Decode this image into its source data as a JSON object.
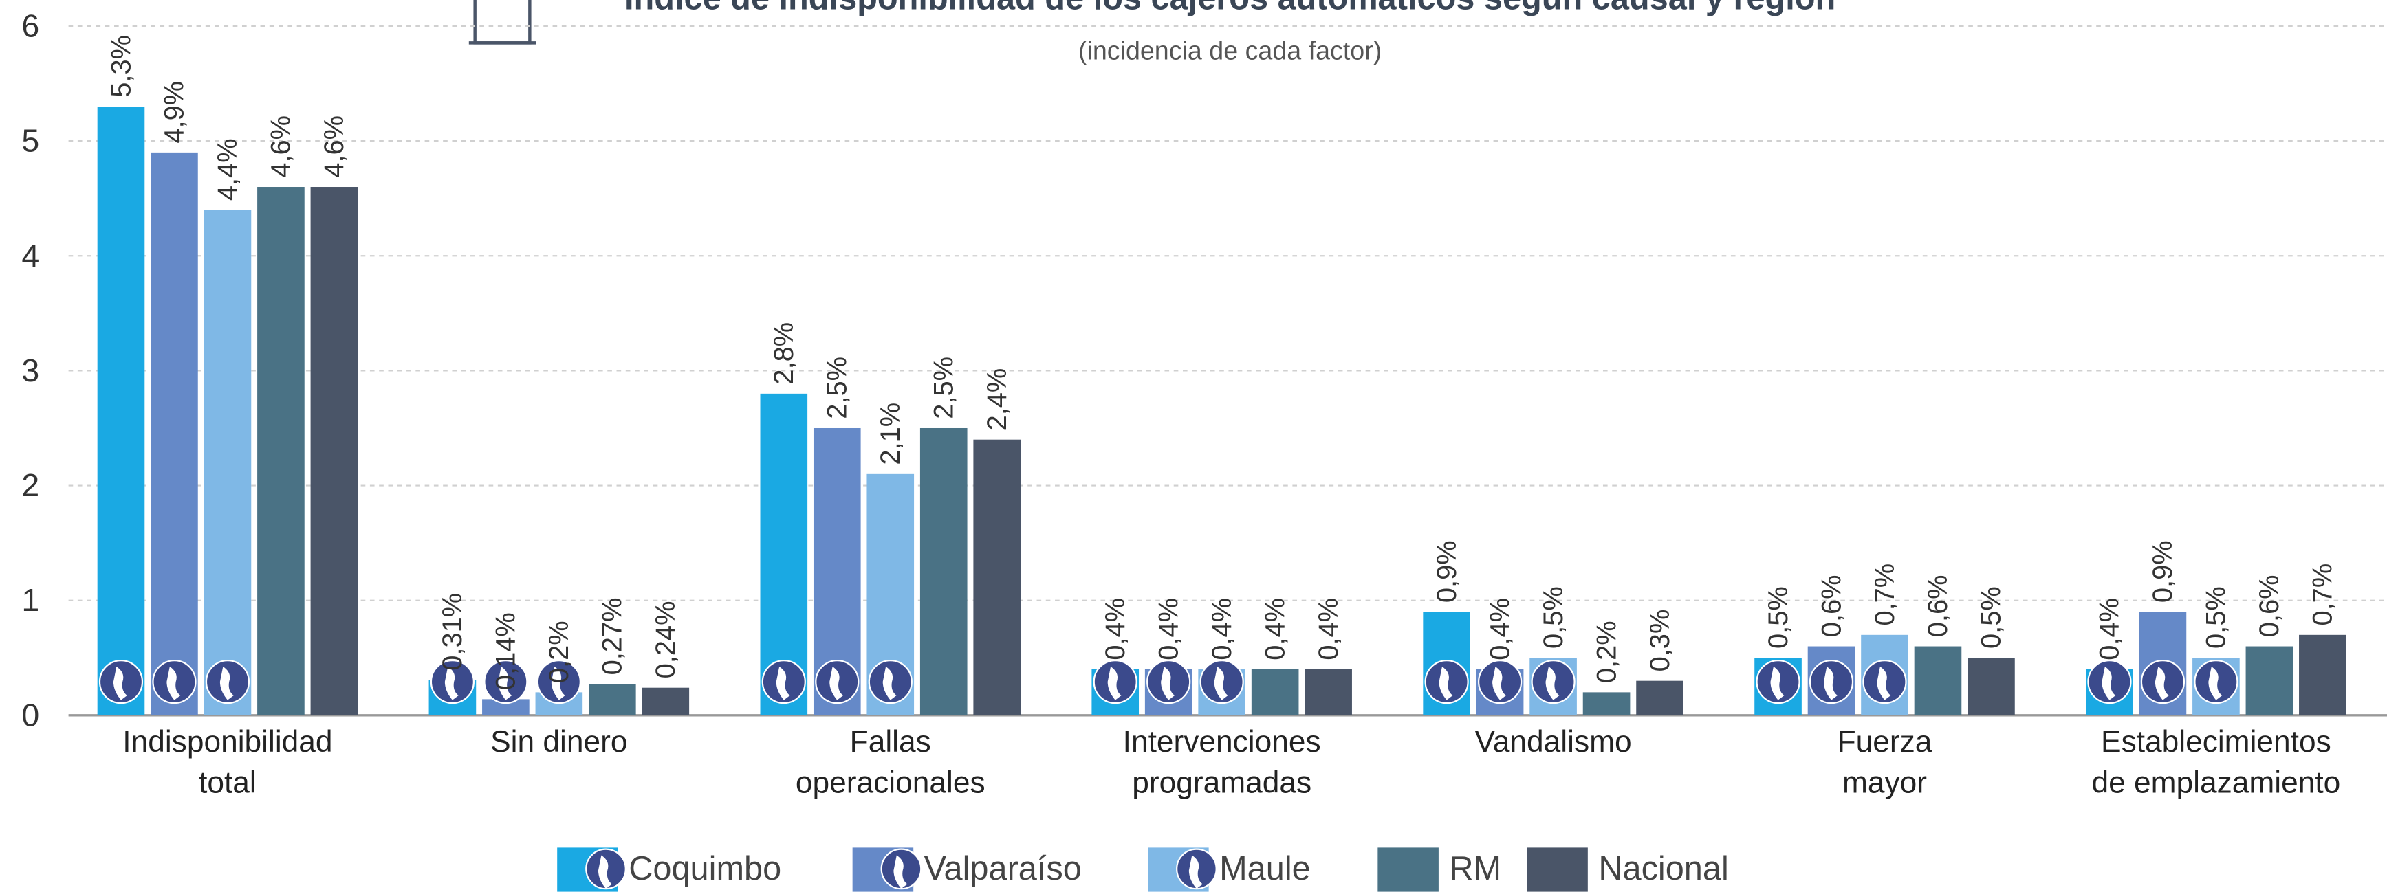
{
  "chart_data": {
    "type": "bar",
    "title": "Índice de indisponibilidad de los cajeros automáticos según causal y región",
    "subtitle": "(incidencia de cada factor)",
    "categories": [
      "Indisponibilidad\ntotal",
      "Sin dinero",
      "Fallas\noperacionales",
      "Intervenciones\nprogramadas",
      "Vandalismo",
      "Fuerza\nmayor",
      "Establecimientos\nde emplazamiento"
    ],
    "series": [
      {
        "name": "Coquimbo",
        "color": "#1aa9e3",
        "values": [
          5.3,
          0.31,
          2.8,
          0.4,
          0.9,
          0.5,
          0.4
        ],
        "value_labels": [
          "5,3%",
          "0,31%",
          "2,8%",
          "0,4%",
          "0,9%",
          "0,5%",
          "0,4%"
        ]
      },
      {
        "name": "Valparaíso",
        "color": "#6589c8",
        "values": [
          4.9,
          0.14,
          2.5,
          0.4,
          0.4,
          0.6,
          0.9
        ],
        "value_labels": [
          "4,9%",
          "0,14%",
          "2,5%",
          "0,4%",
          "0,4%",
          "0,6%",
          "0,9%"
        ]
      },
      {
        "name": "Maule",
        "color": "#7fb8e6",
        "values": [
          4.4,
          0.2,
          2.1,
          0.4,
          0.5,
          0.7,
          0.5
        ],
        "value_labels": [
          "4,4%",
          "0,2%",
          "2,1%",
          "0,4%",
          "0,5%",
          "0,7%",
          "0,5%"
        ]
      },
      {
        "name": "RM",
        "color": "#4a7285",
        "values": [
          4.6,
          0.27,
          2.5,
          0.4,
          0.2,
          0.6,
          0.6
        ],
        "value_labels": [
          "4,6%",
          "0,27%",
          "2,5%",
          "0,4%",
          "0,2%",
          "0,6%",
          "0,6%"
        ]
      },
      {
        "name": "Nacional",
        "color": "#4a5568",
        "values": [
          4.6,
          0.24,
          2.4,
          0.4,
          0.3,
          0.5,
          0.7
        ],
        "value_labels": [
          "4,6%",
          "0,24%",
          "2,4%",
          "0,4%",
          "0,3%",
          "0,5%",
          "0,7%"
        ]
      }
    ],
    "ylim": [
      0,
      6
    ],
    "yticks": [
      0,
      1,
      2,
      3,
      4,
      5,
      6
    ],
    "grid": true
  }
}
